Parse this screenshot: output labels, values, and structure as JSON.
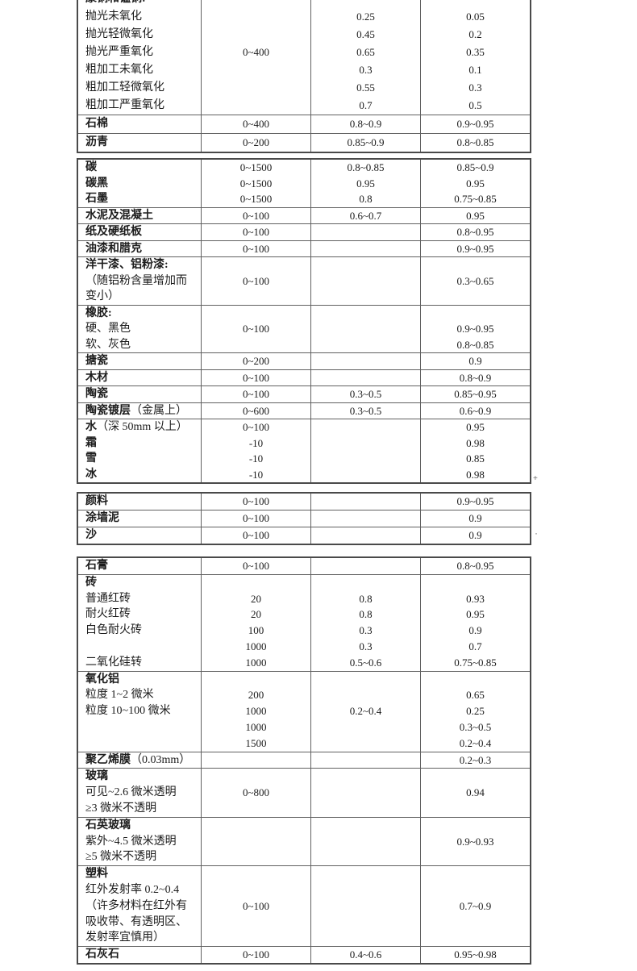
{
  "marks": {
    "dagger": "+",
    "dot": "·"
  },
  "table": {
    "blocks": [
      {
        "sections": [
          {
            "lines": [
              {
                "name": "康铜和锰铜:",
                "bold": true,
                "temp": "",
                "e1": "",
                "e2": ""
              },
              {
                "name": "抛光未氧化",
                "bold": false,
                "temp": "",
                "e1": "0.25",
                "e2": "0.05"
              },
              {
                "name": "抛光轻微氧化",
                "bold": false,
                "temp": "",
                "e1": "0.45",
                "e2": "0.2"
              },
              {
                "name": "抛光严重氧化",
                "bold": false,
                "temp": "0~400",
                "e1": "0.65",
                "e2": "0.35"
              },
              {
                "name": "粗加工未氧化",
                "bold": false,
                "temp": "",
                "e1": "0.3",
                "e2": "0.1"
              },
              {
                "name": "粗加工轻微氧化",
                "bold": false,
                "temp": "",
                "e1": "0.55",
                "e2": "0.3"
              },
              {
                "name": "粗加工严重氧化",
                "bold": false,
                "temp": "",
                "e1": "0.7",
                "e2": "0.5"
              }
            ]
          },
          {
            "lines": [
              {
                "name": "石棉",
                "bold": true,
                "temp": "0~400",
                "e1": "0.8~0.9",
                "e2": "0.9~0.95"
              }
            ]
          },
          {
            "lines": [
              {
                "name": "沥青",
                "bold": true,
                "temp": "0~200",
                "e1": "0.85~0.9",
                "e2": "0.8~0.85"
              }
            ]
          }
        ]
      },
      {
        "sections": [
          {
            "lines": [
              {
                "name": "碳",
                "bold": true,
                "temp": "0~1500",
                "e1": "0.8~0.85",
                "e2": "0.85~0.9"
              },
              {
                "name": "碳黑",
                "bold": true,
                "temp": "0~1500",
                "e1": "0.95",
                "e2": "0.95"
              },
              {
                "name": "石墨",
                "bold": true,
                "temp": "0~1500",
                "e1": "0.8",
                "e2": "0.75~0.85"
              }
            ]
          },
          {
            "lines": [
              {
                "name": "水泥及混凝土",
                "bold": true,
                "temp": "0~100",
                "e1": "0.6~0.7",
                "e2": "0.95"
              }
            ]
          },
          {
            "lines": [
              {
                "name": "纸及硬纸板",
                "bold": true,
                "temp": "0~100",
                "e1": "",
                "e2": "0.8~0.95"
              }
            ]
          },
          {
            "lines": [
              {
                "name": "油漆和腊克",
                "bold": true,
                "temp": "0~100",
                "e1": "",
                "e2": "0.9~0.95"
              }
            ]
          },
          {
            "lines": [
              {
                "name": "洋干漆、铝粉漆:",
                "bold": true,
                "temp": "",
                "e1": "",
                "e2": ""
              },
              {
                "name": "（随铝粉含量增加而",
                "bold": false,
                "temp": "0~100",
                "e1": "",
                "e2": "0.3~0.65"
              },
              {
                "name": "变小）",
                "bold": false,
                "temp": "",
                "e1": "",
                "e2": ""
              }
            ]
          },
          {
            "lines": [
              {
                "name": "橡胶:",
                "bold": true,
                "temp": "",
                "e1": "",
                "e2": ""
              },
              {
                "name": "硬、黑色",
                "bold": false,
                "temp": "0~100",
                "e1": "",
                "e2": "0.9~0.95"
              },
              {
                "name": "软、灰色",
                "bold": false,
                "temp": "",
                "e1": "",
                "e2": "0.8~0.85"
              }
            ]
          },
          {
            "lines": [
              {
                "name": "搪瓷",
                "bold": true,
                "temp": "0~200",
                "e1": "",
                "e2": "0.9"
              }
            ]
          },
          {
            "lines": [
              {
                "name": "木材",
                "bold": true,
                "temp": "0~100",
                "e1": "",
                "e2": "0.8~0.9"
              }
            ]
          },
          {
            "lines": [
              {
                "name": "陶瓷",
                "bold": true,
                "temp": "0~100",
                "e1": "0.3~0.5",
                "e2": "0.85~0.95"
              }
            ]
          },
          {
            "lines": [
              {
                "name": "陶瓷镀层",
                "suffix": "（金属上）",
                "bold": true,
                "temp": "0~600",
                "e1": "0.3~0.5",
                "e2": "0.6~0.9"
              }
            ]
          },
          {
            "lines": [
              {
                "name": "水",
                "suffix": "（深 50mm 以上）",
                "bold": true,
                "temp": "0~100",
                "e1": "",
                "e2": "0.95"
              },
              {
                "name": "霜",
                "bold": true,
                "temp": "-10",
                "e1": "",
                "e2": "0.98"
              },
              {
                "name": "雪",
                "bold": true,
                "temp": "-10",
                "e1": "",
                "e2": "0.85"
              },
              {
                "name": "冰",
                "bold": true,
                "temp": "-10",
                "e1": "",
                "e2": "0.98"
              }
            ]
          }
        ]
      },
      {
        "sections": [
          {
            "lines": [
              {
                "name": "颜料",
                "bold": true,
                "temp": "0~100",
                "e1": "",
                "e2": "0.9~0.95"
              }
            ]
          },
          {
            "lines": [
              {
                "name": "涂墙泥",
                "bold": true,
                "temp": "0~100",
                "e1": "",
                "e2": "0.9"
              }
            ]
          },
          {
            "lines": [
              {
                "name": "沙",
                "bold": true,
                "temp": "0~100",
                "e1": "",
                "e2": "0.9"
              }
            ]
          }
        ]
      },
      {
        "sections": [
          {
            "lines": [
              {
                "name": "石膏",
                "bold": true,
                "temp": "0~100",
                "e1": "",
                "e2": "0.8~0.95"
              }
            ]
          },
          {
            "lines": [
              {
                "name": "砖",
                "bold": true,
                "temp": "",
                "e1": "",
                "e2": ""
              },
              {
                "name": "普通红砖",
                "bold": false,
                "temp": "20",
                "e1": "0.8",
                "e2": "0.93"
              },
              {
                "name": "耐火红砖",
                "bold": false,
                "temp": "20",
                "e1": "0.8",
                "e2": "0.95"
              },
              {
                "name": "白色耐火砖",
                "bold": false,
                "temp": "100",
                "e1": "0.3",
                "e2": "0.9"
              },
              {
                "name": "",
                "bold": false,
                "temp": "1000",
                "e1": "0.3",
                "e2": "0.7"
              },
              {
                "name": "二氧化硅转",
                "bold": false,
                "temp": "1000",
                "e1": "0.5~0.6",
                "e2": "0.75~0.85"
              }
            ]
          },
          {
            "lines": [
              {
                "name": "氧化铝",
                "bold": true,
                "temp": "",
                "e1": "",
                "e2": ""
              },
              {
                "name": "粒度 1~2 微米",
                "bold": false,
                "temp": "200",
                "e1": "",
                "e2": "0.65"
              },
              {
                "name": "粒度 10~100 微米",
                "bold": false,
                "temp": "1000",
                "e1": "0.2~0.4",
                "e2": "0.25"
              },
              {
                "name": "",
                "bold": false,
                "temp": "1000",
                "e1": "",
                "e2": "0.3~0.5"
              },
              {
                "name": "",
                "bold": false,
                "temp": "1500",
                "e1": "",
                "e2": "0.2~0.4"
              }
            ]
          },
          {
            "lines": [
              {
                "name": "聚乙烯膜",
                "suffix": "（0.03mm）",
                "bold": true,
                "temp": "",
                "e1": "",
                "e2": "0.2~0.3"
              }
            ]
          },
          {
            "lines": [
              {
                "name": "玻璃",
                "bold": true,
                "temp": "",
                "e1": "",
                "e2": ""
              },
              {
                "name": "可见~2.6 微米透明",
                "bold": false,
                "temp": "0~800",
                "e1": "",
                "e2": "0.94"
              },
              {
                "name": "≥3 微米不透明",
                "bold": false,
                "temp": "",
                "e1": "",
                "e2": ""
              }
            ]
          },
          {
            "lines": [
              {
                "name": "石英玻璃",
                "bold": true,
                "temp": "",
                "e1": "",
                "e2": ""
              },
              {
                "name": "紫外~4.5 微米透明",
                "bold": false,
                "temp": "",
                "e1": "",
                "e2": "0.9~0.93"
              },
              {
                "name": "≥5 微米不透明",
                "bold": false,
                "temp": "",
                "e1": "",
                "e2": ""
              }
            ]
          },
          {
            "lines": [
              {
                "name": "塑料",
                "bold": true,
                "temp": "",
                "e1": "",
                "e2": ""
              },
              {
                "name": "红外发射率 0.2~0.4",
                "bold": false,
                "temp": "",
                "e1": "",
                "e2": ""
              },
              {
                "name": "（许多材料在红外有",
                "bold": false,
                "temp": "0~100",
                "e1": "",
                "e2": "0.7~0.9"
              },
              {
                "name": "吸收带、有透明区、",
                "bold": false,
                "temp": "",
                "e1": "",
                "e2": ""
              },
              {
                "name": "发射率宜慎用）",
                "bold": false,
                "temp": "",
                "e1": "",
                "e2": ""
              }
            ]
          },
          {
            "lines": [
              {
                "name": "石灰石",
                "bold": true,
                "temp": "0~100",
                "e1": "0.4~0.6",
                "e2": "0.95~0.98"
              }
            ]
          }
        ]
      }
    ]
  }
}
